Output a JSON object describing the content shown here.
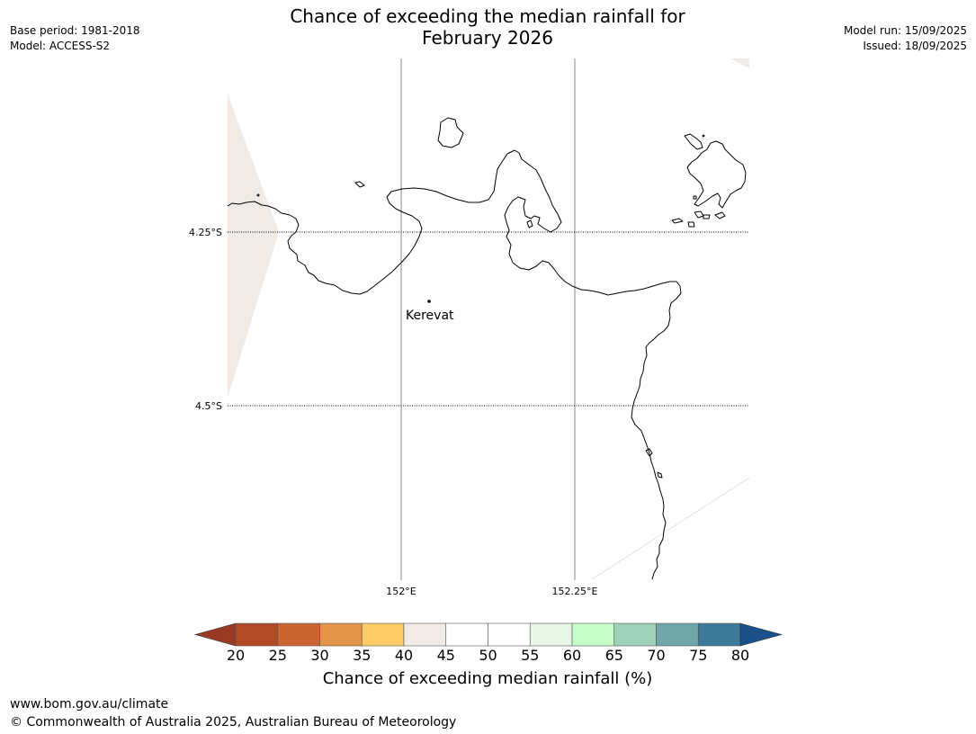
{
  "header": {
    "title_line1": "Chance of exceeding the median rainfall for",
    "title_line2": "February 2026",
    "base_period": "Base period: 1981-2018",
    "model": "Model: ACCESS-S2",
    "model_run": "Model run: 15/09/2025",
    "issued": "Issued: 18/09/2025"
  },
  "map": {
    "latitude_labels": [
      "4.25°S",
      "4.5°S"
    ],
    "longitude_labels": [
      "152°E",
      "152.25°E"
    ],
    "places": [
      {
        "name": "Kerevat",
        "lat": -4.35,
        "lon": 152.04
      }
    ],
    "land_fill_color": "#f0ebe6",
    "coastline_color": "#000000"
  },
  "colorbar": {
    "ticks": [
      "20",
      "25",
      "30",
      "35",
      "40",
      "45",
      "50",
      "55",
      "60",
      "65",
      "70",
      "75",
      "80"
    ],
    "under_color": "#9a3a24",
    "over_color": "#1a508a",
    "colors": [
      "#b24a27",
      "#cc6432",
      "#e29548",
      "#fecb67",
      "#f1ebe6",
      "#ffffff",
      "#ffffff",
      "#e8f6e8",
      "#c7fdc9",
      "#9ed1b8",
      "#70a6a8",
      "#3e7a9a"
    ],
    "label": "Chance of exceeding median rainfall (%)"
  },
  "footer": {
    "url": "www.bom.gov.au/climate",
    "copyright": "© Commonwealth of Australia 2025, Australian Bureau of Meteorology"
  }
}
